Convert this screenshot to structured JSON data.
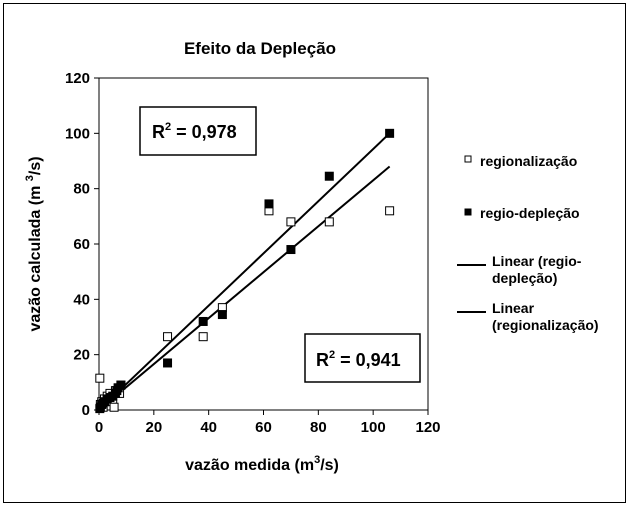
{
  "chart_data": {
    "type": "scatter",
    "title": "Efeito da Depleção",
    "xlabel": {
      "prefix": "vazão medida (m",
      "sup": "3",
      "suffix": "/s)"
    },
    "ylabel": {
      "prefix": "vazão calculada (m ",
      "sup": "3",
      "suffix": "/s)"
    },
    "xlim": [
      0,
      120
    ],
    "ylim": [
      0,
      120
    ],
    "xticks": [
      0,
      20,
      40,
      60,
      80,
      100,
      120
    ],
    "yticks": [
      0,
      20,
      40,
      60,
      80,
      100,
      120
    ],
    "grid": false,
    "legend_position": "right",
    "series": [
      {
        "name": "regionalização",
        "marker": "square-open",
        "color": "#000000",
        "points": [
          [
            0.3,
            11.5
          ],
          [
            0.5,
            2
          ],
          [
            1,
            3
          ],
          [
            1.5,
            1
          ],
          [
            2,
            4
          ],
          [
            3,
            5
          ],
          [
            4,
            6
          ],
          [
            5,
            3
          ],
          [
            5.5,
            1
          ],
          [
            6,
            7
          ],
          [
            7,
            8
          ],
          [
            7.5,
            6
          ],
          [
            8,
            9
          ],
          [
            25,
            26.5
          ],
          [
            38,
            26.5
          ],
          [
            45,
            37
          ],
          [
            62,
            72
          ],
          [
            70,
            68
          ],
          [
            84,
            68
          ],
          [
            106,
            72
          ]
        ]
      },
      {
        "name": "regio-depleção",
        "marker": "square-filled",
        "color": "#000000",
        "points": [
          [
            0.3,
            0.5
          ],
          [
            0.5,
            1
          ],
          [
            1,
            2
          ],
          [
            1.5,
            2.5
          ],
          [
            2,
            3
          ],
          [
            3,
            4
          ],
          [
            4,
            4.5
          ],
          [
            5,
            5
          ],
          [
            6,
            6
          ],
          [
            6.5,
            7
          ],
          [
            7,
            8
          ],
          [
            8,
            9
          ],
          [
            25,
            17
          ],
          [
            38,
            32
          ],
          [
            45,
            34.5
          ],
          [
            62,
            74.5
          ],
          [
            70,
            58
          ],
          [
            84,
            84.5
          ],
          [
            106,
            100
          ]
        ]
      }
    ],
    "trendlines": [
      {
        "name": "Linear (regio-depleção)",
        "from": [
          0,
          0
        ],
        "to": [
          106,
          100
        ],
        "r2": "0,978"
      },
      {
        "name": "Linear (regionalização)",
        "from": [
          0,
          0
        ],
        "to": [
          106,
          88
        ],
        "r2": "0,941"
      }
    ],
    "r2_labels": {
      "top": "0,978",
      "bottom": "0,941"
    }
  }
}
